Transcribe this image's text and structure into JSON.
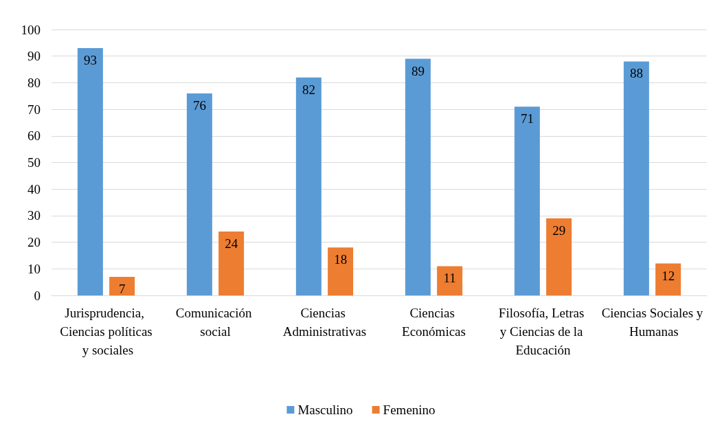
{
  "chart_data": {
    "type": "bar",
    "categories": [
      "Jurisprudencia, Ciencias políticas y sociales",
      "Comunicación social",
      "Ciencias Administrativas",
      "Ciencias Económicas",
      "Filosofía, Letras y Ciencias de la Educación",
      "Ciencias Sociales y Humanas"
    ],
    "series": [
      {
        "name": "Masculino",
        "color": "#5b9bd5",
        "values": [
          93,
          76,
          82,
          89,
          71,
          88
        ]
      },
      {
        "name": "Femenino",
        "color": "#ed7d31",
        "values": [
          7,
          24,
          18,
          11,
          29,
          12
        ]
      }
    ],
    "ylim": [
      0,
      100
    ],
    "yticks": [
      0,
      10,
      20,
      30,
      40,
      50,
      60,
      70,
      80,
      90,
      100
    ],
    "grid": "y",
    "legend": "bottom",
    "data_labels": true
  }
}
